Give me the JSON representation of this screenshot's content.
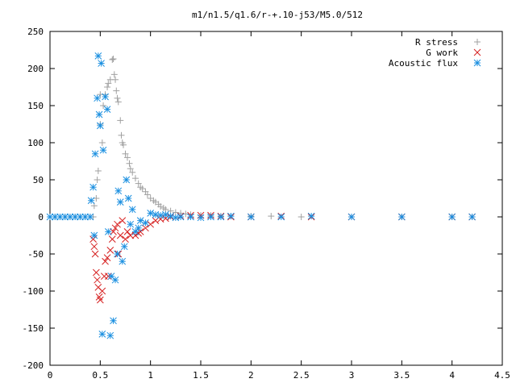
{
  "chart_data": {
    "type": "scatter",
    "title": "m1/n1.5/q1.6/r-+.10-j53/M5.0/512",
    "xlabel": "",
    "ylabel": "",
    "xlim": [
      0,
      4.5
    ],
    "ylim": [
      -200,
      250
    ],
    "x_ticks": [
      "0",
      "0.5",
      "1",
      "1.5",
      "2",
      "2.5",
      "3",
      "3.5",
      "4",
      "4.5"
    ],
    "y_ticks": [
      "250",
      "200",
      "150",
      "100",
      "50",
      "0",
      "-50",
      "-100",
      "-150",
      "-200"
    ],
    "grid": false,
    "legend_position": "top-right",
    "series": [
      {
        "name": "R stress",
        "marker": "plus",
        "color": "#a0a0a0",
        "points": [
          [
            0.0,
            0
          ],
          [
            0.05,
            0
          ],
          [
            0.1,
            0
          ],
          [
            0.15,
            0
          ],
          [
            0.2,
            0
          ],
          [
            0.25,
            0
          ],
          [
            0.3,
            0
          ],
          [
            0.35,
            0
          ],
          [
            0.4,
            0
          ],
          [
            0.43,
            0
          ],
          [
            0.44,
            15
          ],
          [
            0.46,
            25
          ],
          [
            0.47,
            50
          ],
          [
            0.48,
            62
          ],
          [
            0.5,
            125
          ],
          [
            0.5,
            165
          ],
          [
            0.52,
            100
          ],
          [
            0.53,
            150
          ],
          [
            0.55,
            165
          ],
          [
            0.57,
            175
          ],
          [
            0.58,
            180
          ],
          [
            0.6,
            185
          ],
          [
            0.62,
            212
          ],
          [
            0.63,
            213
          ],
          [
            0.64,
            192
          ],
          [
            0.65,
            185
          ],
          [
            0.66,
            170
          ],
          [
            0.67,
            160
          ],
          [
            0.68,
            155
          ],
          [
            0.7,
            130
          ],
          [
            0.71,
            110
          ],
          [
            0.72,
            100
          ],
          [
            0.73,
            97
          ],
          [
            0.75,
            85
          ],
          [
            0.77,
            80
          ],
          [
            0.79,
            72
          ],
          [
            0.8,
            65
          ],
          [
            0.82,
            60
          ],
          [
            0.85,
            52
          ],
          [
            0.88,
            45
          ],
          [
            0.9,
            40
          ],
          [
            0.92,
            38
          ],
          [
            0.95,
            34
          ],
          [
            0.97,
            30
          ],
          [
            1.0,
            25
          ],
          [
            1.03,
            22
          ],
          [
            1.05,
            20
          ],
          [
            1.08,
            17
          ],
          [
            1.1,
            14
          ],
          [
            1.13,
            12
          ],
          [
            1.15,
            10
          ],
          [
            1.2,
            8
          ],
          [
            1.25,
            6
          ],
          [
            1.3,
            5
          ],
          [
            1.35,
            4
          ],
          [
            1.4,
            3
          ],
          [
            1.5,
            2
          ],
          [
            1.6,
            2
          ],
          [
            1.7,
            1
          ],
          [
            1.8,
            1
          ],
          [
            2.0,
            1
          ],
          [
            2.2,
            1
          ],
          [
            2.5,
            0
          ],
          [
            3.0,
            0
          ],
          [
            3.5,
            0
          ],
          [
            4.0,
            0
          ],
          [
            4.2,
            0
          ]
        ]
      },
      {
        "name": "G work",
        "marker": "cross",
        "color": "#d62020",
        "points": [
          [
            0.43,
            -30
          ],
          [
            0.44,
            -40
          ],
          [
            0.45,
            -50
          ],
          [
            0.46,
            -75
          ],
          [
            0.47,
            -85
          ],
          [
            0.48,
            -95
          ],
          [
            0.49,
            -108
          ],
          [
            0.5,
            -112
          ],
          [
            0.52,
            -100
          ],
          [
            0.54,
            -80
          ],
          [
            0.55,
            -60
          ],
          [
            0.57,
            -55
          ],
          [
            0.58,
            -80
          ],
          [
            0.6,
            -45
          ],
          [
            0.62,
            -30
          ],
          [
            0.63,
            -20
          ],
          [
            0.65,
            -15
          ],
          [
            0.67,
            -10
          ],
          [
            0.68,
            -50
          ],
          [
            0.7,
            -25
          ],
          [
            0.72,
            -5
          ],
          [
            0.75,
            -30
          ],
          [
            0.77,
            -20
          ],
          [
            0.8,
            -25
          ],
          [
            0.85,
            -25
          ],
          [
            0.88,
            -22
          ],
          [
            0.9,
            -20
          ],
          [
            0.95,
            -15
          ],
          [
            1.0,
            -10
          ],
          [
            1.05,
            -5
          ],
          [
            1.1,
            -3
          ],
          [
            1.15,
            -2
          ],
          [
            1.2,
            0
          ],
          [
            1.3,
            1
          ],
          [
            1.4,
            2
          ],
          [
            1.5,
            2
          ],
          [
            1.6,
            2
          ],
          [
            1.7,
            1
          ],
          [
            1.8,
            0
          ],
          [
            2.0,
            0
          ],
          [
            2.3,
            1
          ],
          [
            2.6,
            0
          ],
          [
            3.0,
            0
          ],
          [
            3.5,
            0
          ],
          [
            4.0,
            0
          ],
          [
            4.2,
            0
          ]
        ]
      },
      {
        "name": "Acoustic flux",
        "marker": "star",
        "color": "#1a8fe0",
        "points": [
          [
            0.0,
            0
          ],
          [
            0.05,
            0
          ],
          [
            0.1,
            0
          ],
          [
            0.15,
            0
          ],
          [
            0.2,
            0
          ],
          [
            0.25,
            0
          ],
          [
            0.3,
            0
          ],
          [
            0.35,
            0
          ],
          [
            0.4,
            0
          ],
          [
            0.41,
            22
          ],
          [
            0.43,
            40
          ],
          [
            0.44,
            -25
          ],
          [
            0.45,
            85
          ],
          [
            0.47,
            160
          ],
          [
            0.48,
            217
          ],
          [
            0.49,
            138
          ],
          [
            0.5,
            123
          ],
          [
            0.51,
            207
          ],
          [
            0.52,
            -158
          ],
          [
            0.53,
            90
          ],
          [
            0.55,
            162
          ],
          [
            0.57,
            145
          ],
          [
            0.58,
            -20
          ],
          [
            0.6,
            -160
          ],
          [
            0.61,
            -80
          ],
          [
            0.63,
            -140
          ],
          [
            0.65,
            -85
          ],
          [
            0.67,
            -50
          ],
          [
            0.68,
            35
          ],
          [
            0.7,
            20
          ],
          [
            0.72,
            -60
          ],
          [
            0.74,
            -40
          ],
          [
            0.76,
            50
          ],
          [
            0.78,
            25
          ],
          [
            0.8,
            -10
          ],
          [
            0.82,
            10
          ],
          [
            0.85,
            -20
          ],
          [
            0.88,
            -15
          ],
          [
            0.9,
            -5
          ],
          [
            0.95,
            -8
          ],
          [
            1.0,
            5
          ],
          [
            1.05,
            3
          ],
          [
            1.1,
            2
          ],
          [
            1.15,
            3
          ],
          [
            1.2,
            1
          ],
          [
            1.25,
            -1
          ],
          [
            1.3,
            0
          ],
          [
            1.4,
            0
          ],
          [
            1.5,
            -1
          ],
          [
            1.6,
            0
          ],
          [
            1.7,
            0
          ],
          [
            1.8,
            1
          ],
          [
            2.0,
            0
          ],
          [
            2.3,
            0
          ],
          [
            2.6,
            1
          ],
          [
            3.0,
            0
          ],
          [
            3.5,
            0
          ],
          [
            4.0,
            0
          ],
          [
            4.2,
            0
          ]
        ]
      }
    ]
  }
}
